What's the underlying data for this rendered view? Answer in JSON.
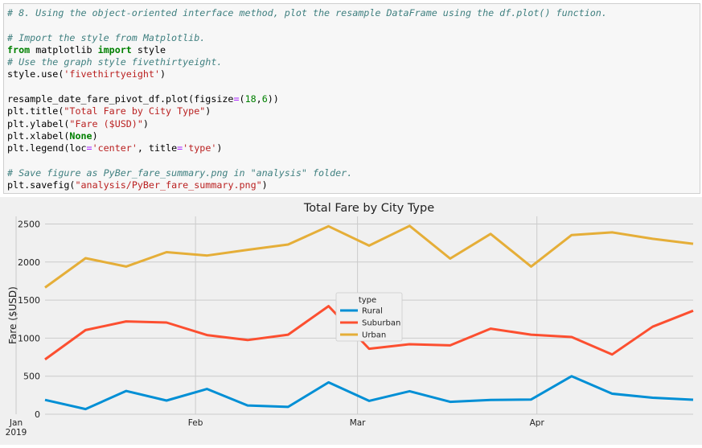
{
  "code_cell": {
    "lines": [
      [
        {
          "t": "# 8. Using the object-oriented interface method, plot the resample DataFrame using the df.plot() function.",
          "c": "cm"
        }
      ],
      [],
      [
        {
          "t": "# Import the style from Matplotlib.",
          "c": "cm"
        }
      ],
      [
        {
          "t": "from",
          "c": "kw"
        },
        {
          "t": " matplotlib "
        },
        {
          "t": "import",
          "c": "kw"
        },
        {
          "t": " style"
        }
      ],
      [
        {
          "t": "# Use the graph style fivethirtyeight.",
          "c": "cm"
        }
      ],
      [
        {
          "t": "style.use("
        },
        {
          "t": "'fivethirtyeight'",
          "c": "st"
        },
        {
          "t": ")"
        }
      ],
      [],
      [
        {
          "t": "resample_date_fare_pivot_df.plot(figsize"
        },
        {
          "t": "=",
          "c": "op"
        },
        {
          "t": "("
        },
        {
          "t": "18",
          "c": "nu"
        },
        {
          "t": ","
        },
        {
          "t": "6",
          "c": "nu"
        },
        {
          "t": "))"
        }
      ],
      [
        {
          "t": "plt.title("
        },
        {
          "t": "\"Total Fare by City Type\"",
          "c": "st"
        },
        {
          "t": ")"
        }
      ],
      [
        {
          "t": "plt.ylabel("
        },
        {
          "t": "\"Fare ($USD)\"",
          "c": "st"
        },
        {
          "t": ")"
        }
      ],
      [
        {
          "t": "plt.xlabel("
        },
        {
          "t": "None",
          "c": "kw"
        },
        {
          "t": ")"
        }
      ],
      [
        {
          "t": "plt.legend(loc"
        },
        {
          "t": "=",
          "c": "op"
        },
        {
          "t": "'center'",
          "c": "st"
        },
        {
          "t": ", title"
        },
        {
          "t": "=",
          "c": "op"
        },
        {
          "t": "'type'",
          "c": "st"
        },
        {
          "t": ")"
        }
      ],
      [],
      [
        {
          "t": "# Save figure as PyBer_fare_summary.png in \"analysis\" folder.",
          "c": "cm"
        }
      ],
      [
        {
          "t": "plt.savefig("
        },
        {
          "t": "\"analysis/PyBer_fare_summary.png\"",
          "c": "st"
        },
        {
          "t": ")"
        }
      ]
    ]
  },
  "chart_data": {
    "type": "line",
    "title": "Total Fare by City Type",
    "xlabel": "",
    "ylabel": "Fare ($USD)",
    "ylim": [
      0,
      2600
    ],
    "yticks": [
      0,
      500,
      1000,
      1500,
      2000,
      2500
    ],
    "x": [
      "2019-01-06",
      "2019-01-13",
      "2019-01-20",
      "2019-01-27",
      "2019-02-03",
      "2019-02-10",
      "2019-02-17",
      "2019-02-24",
      "2019-03-03",
      "2019-03-10",
      "2019-03-17",
      "2019-03-24",
      "2019-03-31",
      "2019-04-07",
      "2019-04-14",
      "2019-04-21",
      "2019-04-28"
    ],
    "xticks": [
      {
        "date": "2019-01-01",
        "label": "Jan",
        "sublabel": "2019"
      },
      {
        "date": "2019-02-01",
        "label": "Feb",
        "sublabel": ""
      },
      {
        "date": "2019-03-01",
        "label": "Mar",
        "sublabel": ""
      },
      {
        "date": "2019-04-01",
        "label": "Apr",
        "sublabel": ""
      }
    ],
    "grid": true,
    "legend": {
      "title": "type",
      "placement": "center"
    },
    "series": [
      {
        "name": "Rural",
        "color": "#008fd5",
        "values": [
          188,
          68,
          305,
          180,
          332,
          115,
          96,
          419,
          175,
          302,
          163,
          188,
          193,
          500,
          270,
          217,
          190
        ]
      },
      {
        "name": "Suburban",
        "color": "#fc4f30",
        "values": [
          720,
          1105,
          1220,
          1205,
          1040,
          975,
          1045,
          1420,
          860,
          920,
          905,
          1125,
          1045,
          1015,
          785,
          1150,
          1360
        ]
      },
      {
        "name": "Urban",
        "color": "#e5ae38",
        "values": [
          1665,
          2050,
          1940,
          2130,
          2085,
          2160,
          2230,
          2470,
          2215,
          2475,
          2045,
          2370,
          1940,
          2355,
          2390,
          2305,
          2240
        ]
      }
    ]
  }
}
